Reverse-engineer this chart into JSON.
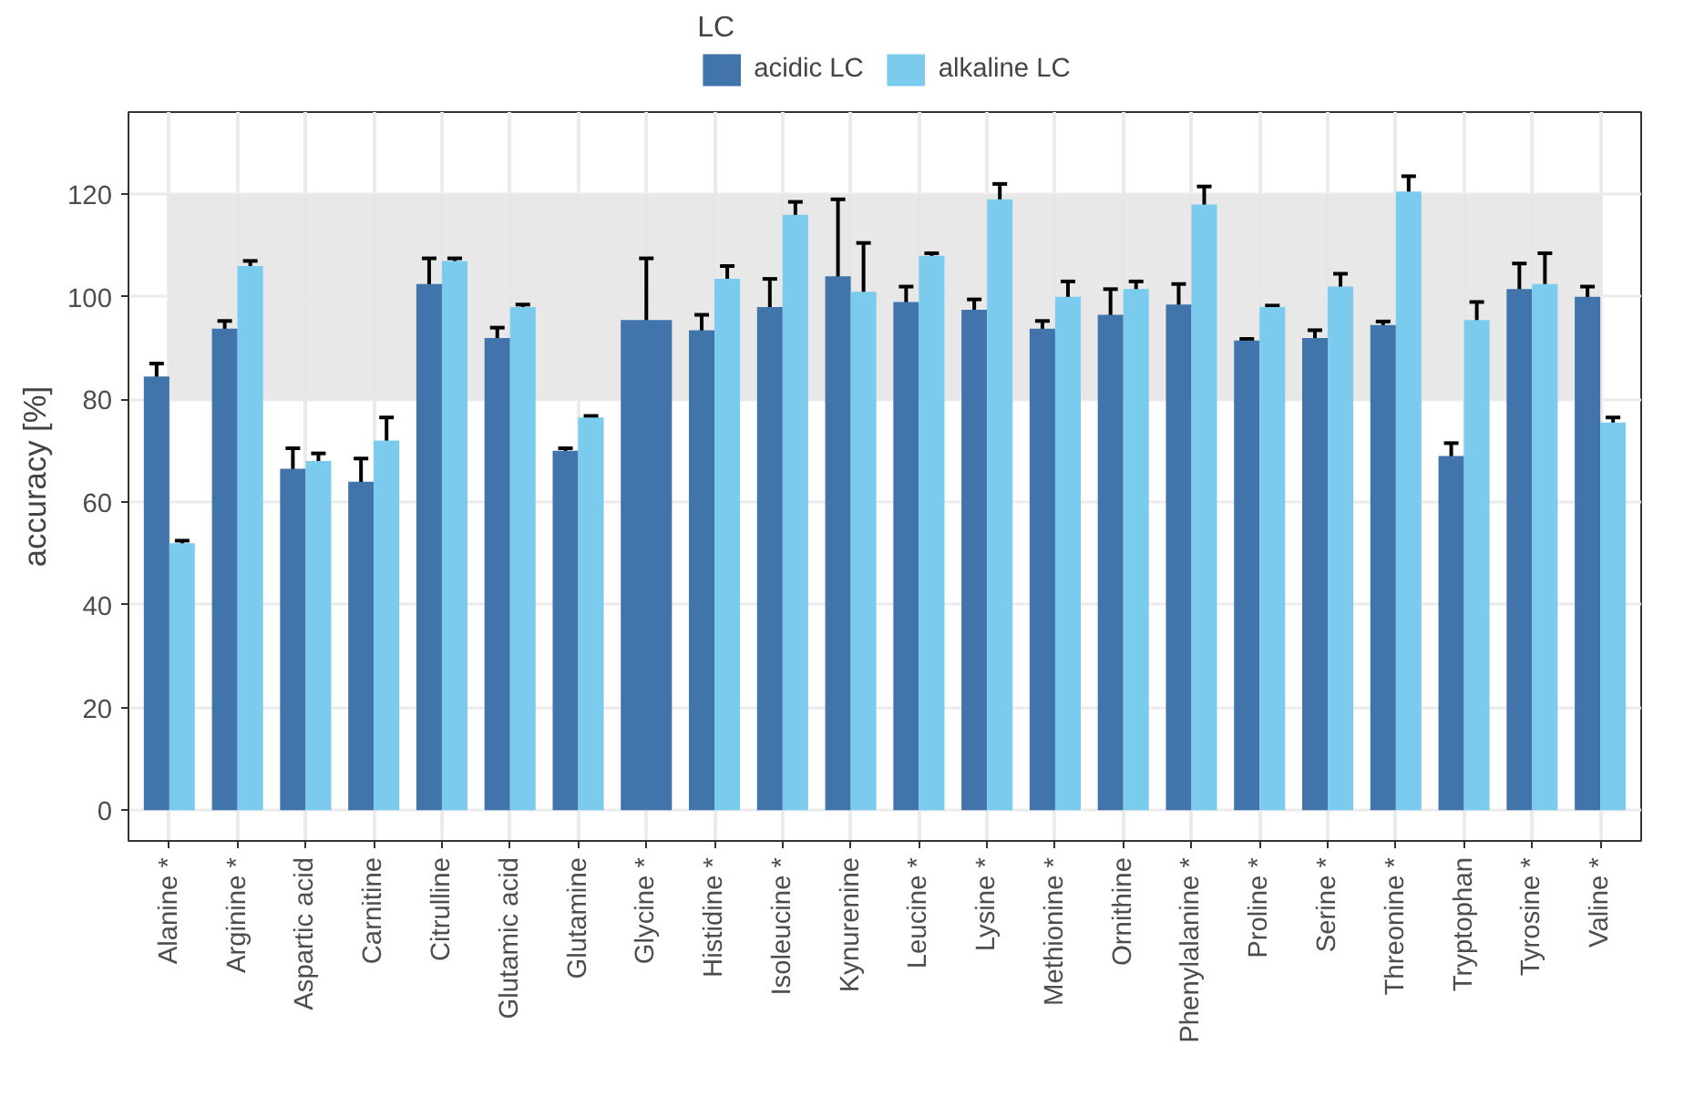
{
  "chart_data": {
    "type": "bar",
    "ylabel": "accuracy [%]",
    "legend_title": "LC",
    "legend": "top",
    "categories": [
      "Alanine *",
      "Arginine *",
      "Aspartic acid",
      "Carnitine",
      "Citrulline",
      "Glutamic acid",
      "Glutamine",
      "Glycine *",
      "Histidine *",
      "Isoleucine *",
      "Kynurenine",
      "Leucine *",
      "Lysine *",
      "Methionine *",
      "Ornithine",
      "Phenylalanine *",
      "Proline *",
      "Serine *",
      "Threonine *",
      "Tryptophan",
      "Tyrosine *",
      "Valine *"
    ],
    "series": [
      {
        "name": "acidic LC",
        "color": "#4174ab",
        "values": [
          84.5,
          93.8,
          66.5,
          64,
          102.5,
          92,
          70,
          95.5,
          93.5,
          98,
          104,
          99,
          97.5,
          93.8,
          96.5,
          98.5,
          91.5,
          92,
          94.5,
          69,
          101.5,
          100
        ],
        "errors": [
          2.5,
          1.5,
          4,
          4.5,
          5,
          2,
          0.5,
          12,
          3,
          5.5,
          15,
          3,
          2,
          1.5,
          5,
          4,
          0.3,
          1.5,
          0.7,
          2.5,
          5,
          2
        ]
      },
      {
        "name": "alkaline LC",
        "color": "#7bcbef",
        "values": [
          52,
          106,
          68,
          72,
          107,
          98,
          76.5,
          null,
          103.5,
          116,
          101,
          108,
          119,
          100,
          101.5,
          118,
          98,
          102,
          120.5,
          95.5,
          102.5,
          75.5
        ],
        "errors": [
          0.5,
          1,
          1.5,
          4.5,
          0.5,
          0.5,
          0.3,
          null,
          2.5,
          2.5,
          9.5,
          0.5,
          3,
          3,
          1.5,
          3.5,
          0.3,
          2.5,
          3,
          3.5,
          6,
          1
        ]
      }
    ],
    "bands": [
      {
        "axis": "y",
        "from": 80,
        "to": 120,
        "color": "#e6e5e6"
      }
    ],
    "ylim": [
      -6,
      136
    ],
    "yticks": [
      0,
      20,
      40,
      60,
      80,
      100,
      120
    ],
    "grid": true
  }
}
